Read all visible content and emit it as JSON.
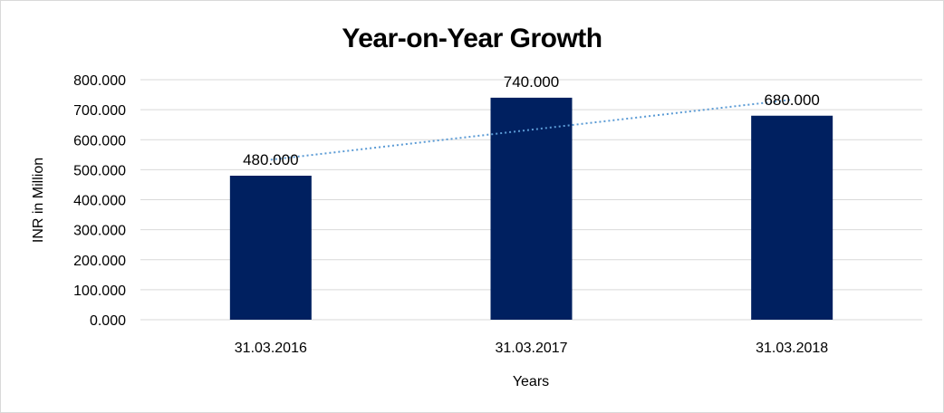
{
  "chart_data": {
    "type": "bar",
    "title": "Year-on-Year Growth",
    "xlabel": "Years",
    "ylabel": "INR in Million",
    "categories": [
      "31.03.2016",
      "31.03.2017",
      "31.03.2018"
    ],
    "values": [
      480,
      740,
      680
    ],
    "data_labels": [
      "480.000",
      "740.000",
      "680.000"
    ],
    "ylim": [
      0,
      800
    ],
    "yticks": [
      0,
      100,
      200,
      300,
      400,
      500,
      600,
      700,
      800
    ],
    "ytick_labels": [
      "0.000",
      "100.000",
      "200.000",
      "300.000",
      "400.000",
      "500.000",
      "600.000",
      "700.000",
      "800.000"
    ],
    "trendline": {
      "type": "linear",
      "style": "dotted",
      "color": "#5b9bd5"
    },
    "bar_color": "#002060",
    "grid": true,
    "legend": "none"
  }
}
